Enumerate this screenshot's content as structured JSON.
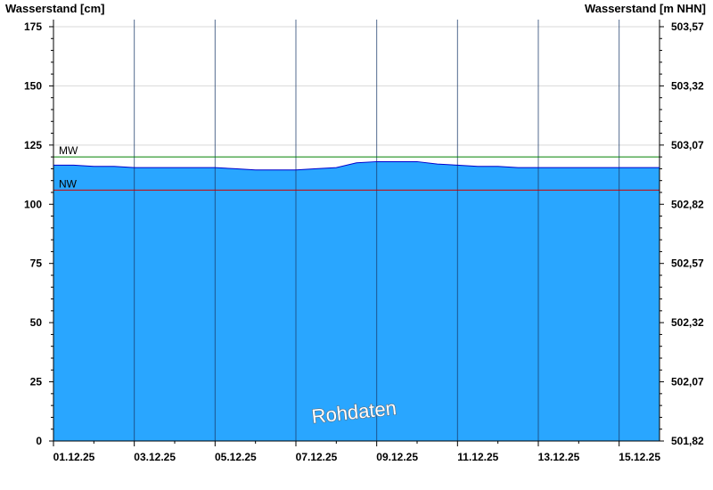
{
  "chart_data": {
    "type": "area",
    "y_left_label": "Wasserstand [cm]",
    "y_right_label": "Wasserstand [m NHN]",
    "ylim": [
      0,
      178
    ],
    "y_ticks": [
      0,
      25,
      50,
      75,
      100,
      125,
      150,
      175
    ],
    "y_tick_labels": [
      "0",
      "25",
      "50",
      "75",
      "100",
      "125",
      "150",
      "175"
    ],
    "y2_tick_labels": [
      "501,82",
      "502,07",
      "502,32",
      "502,57",
      "502,82",
      "503,07",
      "503,32",
      "503,57"
    ],
    "x_ticks": [
      "01.12.25",
      "03.12.25",
      "05.12.25",
      "07.12.25",
      "09.12.25",
      "11.12.25",
      "13.12.25",
      "15.12.25"
    ],
    "x_range_days": [
      0,
      15
    ],
    "grid": true,
    "series": [
      {
        "x": [
          0,
          0.5,
          1,
          1.5,
          2,
          2.5,
          3,
          3.5,
          4,
          4.5,
          5,
          5.5,
          6,
          6.5,
          7,
          7.5,
          8,
          8.5,
          9,
          9.5,
          10,
          10.5,
          11,
          11.5,
          12,
          12.5,
          13,
          13.5,
          14,
          14.5,
          15
        ],
        "values": [
          116.5,
          116.5,
          116,
          116,
          115.5,
          115.5,
          115.5,
          115.5,
          115.5,
          115,
          114.5,
          114.5,
          114.5,
          115,
          115.5,
          117.5,
          118,
          118,
          118,
          117,
          116.5,
          116,
          116,
          115.5,
          115.5,
          115.5,
          115.5,
          115.5,
          115.5,
          115.5,
          115.5
        ]
      }
    ],
    "reference_lines": [
      {
        "label": "MW",
        "value": 120,
        "color": "#008000"
      },
      {
        "label": "NW",
        "value": 106,
        "color": "#cc0000"
      }
    ],
    "annotation": "Rohdaten",
    "colors": {
      "area_fill": "#29a6ff",
      "area_line": "#0000cc",
      "grid": "#d9d9d9"
    }
  }
}
